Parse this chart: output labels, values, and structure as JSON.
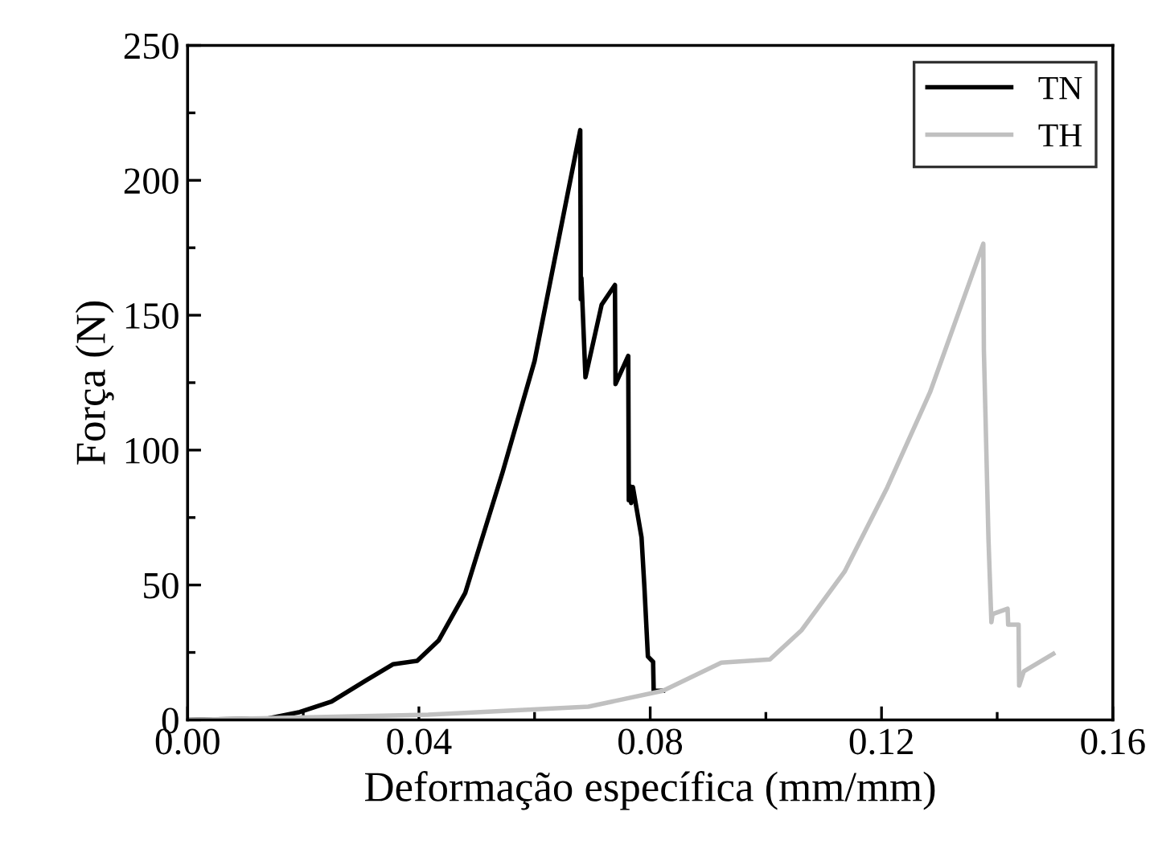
{
  "chart_data": {
    "type": "line",
    "xlabel": "Deformação específica (mm/mm)",
    "ylabel": "Força (N)",
    "xlim": [
      0,
      0.16
    ],
    "ylim": [
      0,
      250
    ],
    "xticks": [
      {
        "value": 0,
        "label": "0.00"
      },
      {
        "value": 0.04,
        "label": "0.04"
      },
      {
        "value": 0.08,
        "label": "0.08"
      },
      {
        "value": 0.12,
        "label": "0.12"
      },
      {
        "value": 0.16,
        "label": "0.16"
      }
    ],
    "yticks": [
      0,
      50,
      100,
      150,
      200,
      250
    ],
    "grid": false,
    "legend": "top right",
    "marker": "none",
    "line_style": "solid",
    "series": [
      {
        "name": "TN",
        "color": "#000000",
        "x": [
          0,
          0.0139,
          0.0194,
          0.0249,
          0.0309,
          0.0355,
          0.0397,
          0.0434,
          0.048,
          0.0545,
          0.06,
          0.0679,
          0.068,
          0.0681,
          0.0688,
          0.0716,
          0.0739,
          0.074,
          0.0762,
          0.0763,
          0.0765,
          0.0767,
          0.077,
          0.0785,
          0.079,
          0.0796,
          0.0805,
          0.0806,
          0.0822
        ],
        "values": [
          0,
          0.5,
          2.9,
          6.8,
          14.7,
          20.6,
          21.9,
          29.4,
          47,
          92,
          133,
          218.6,
          155.9,
          163.7,
          127,
          153.9,
          161.2,
          124.5,
          134.9,
          81.4,
          86.6,
          80.4,
          86.3,
          67.6,
          49,
          23.5,
          21.5,
          10.8,
          10.8
        ]
      },
      {
        "name": "TH",
        "color": "#c0c0c0",
        "x": [
          0,
          0.0416,
          0.0693,
          0.0822,
          0.0923,
          0.1007,
          0.1062,
          0.1136,
          0.121,
          0.1284,
          0.1376,
          0.1377,
          0.1385,
          0.139,
          0.1392,
          0.1418,
          0.1419,
          0.1437,
          0.1438,
          0.1446,
          0.1497
        ],
        "values": [
          0,
          1.9,
          4.9,
          10.8,
          21.2,
          22.4,
          33.3,
          54.9,
          86.2,
          121.5,
          176.5,
          137.2,
          66.6,
          36.2,
          39.2,
          41.2,
          35.3,
          35.3,
          12.7,
          18.0,
          24.5
        ]
      }
    ]
  }
}
